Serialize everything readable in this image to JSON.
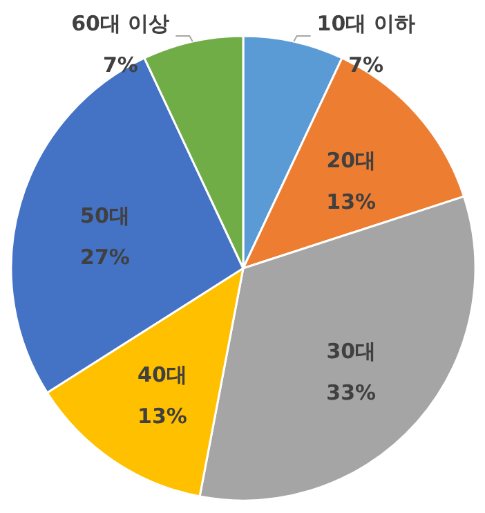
{
  "chart_data": {
    "type": "pie",
    "categories": [
      "10대 이하",
      "20대",
      "30대",
      "40대",
      "50대",
      "60대 이상"
    ],
    "values": [
      7,
      13,
      33,
      13,
      27,
      7
    ],
    "colors": [
      "#5b9bd5",
      "#ed7d31",
      "#a5a5a5",
      "#ffc000",
      "#4472c4",
      "#70ad47"
    ],
    "value_labels": [
      "7%",
      "13%",
      "33%",
      "13%",
      "27%",
      "7%"
    ]
  }
}
